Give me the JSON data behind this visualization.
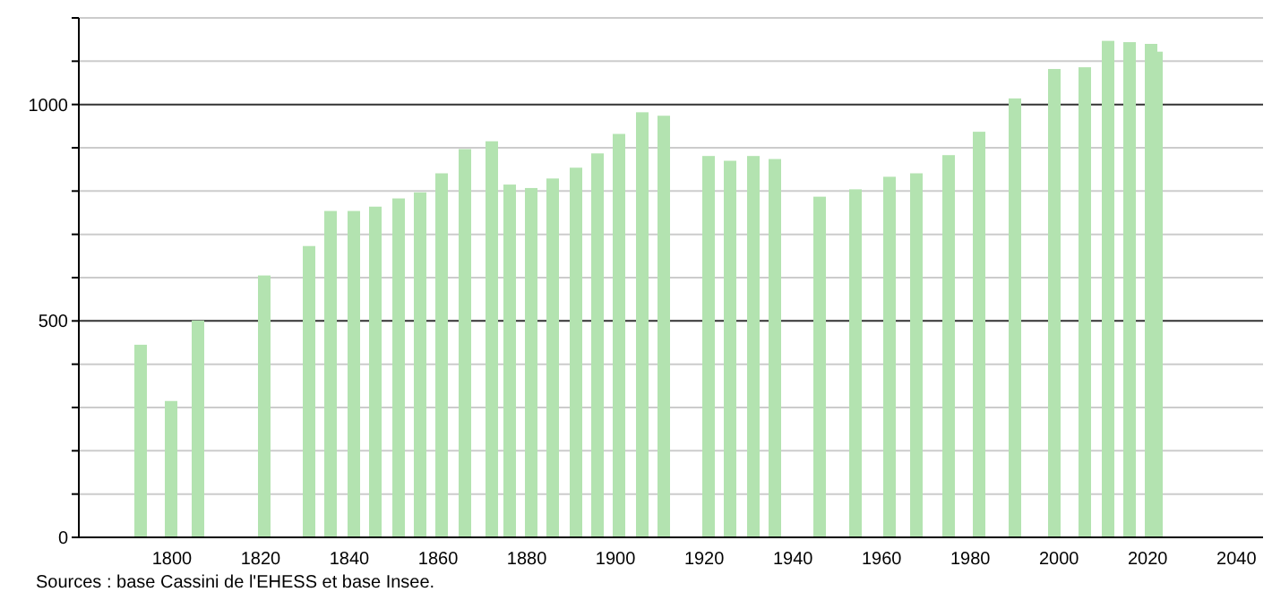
{
  "chart_data": {
    "type": "bar",
    "x": [
      1793,
      1800,
      1806,
      1821,
      1831,
      1836,
      1841,
      1846,
      1851,
      1856,
      1861,
      1866,
      1872,
      1876,
      1881,
      1886,
      1891,
      1896,
      1901,
      1906,
      1911,
      1921,
      1926,
      1931,
      1936,
      1946,
      1954,
      1962,
      1968,
      1975,
      1982,
      1990,
      1999,
      2006,
      2011,
      2016,
      2021,
      2022
    ],
    "values": [
      445,
      315,
      501,
      605,
      673,
      754,
      754,
      764,
      783,
      797,
      841,
      897,
      915,
      815,
      807,
      829,
      854,
      887,
      932,
      982,
      974,
      881,
      870,
      881,
      874,
      787,
      804,
      833,
      841,
      883,
      937,
      1014,
      1082,
      1086,
      1147,
      1144,
      1140,
      1122
    ],
    "color": "#b3e3b0",
    "xlim": [
      1779,
      2046
    ],
    "xticks": [
      1800,
      1820,
      1840,
      1860,
      1880,
      1900,
      1920,
      1940,
      1960,
      1980,
      2000,
      2020,
      2040
    ],
    "ylim": [
      0,
      1200
    ],
    "yticks": [
      0,
      {
        "value": 100,
        "label": null
      },
      {
        "value": 200,
        "label": null
      },
      {
        "value": 300,
        "label": null
      },
      {
        "value": 400,
        "label": null
      },
      500,
      {
        "value": 600,
        "label": null
      },
      {
        "value": 700,
        "label": null
      },
      {
        "value": 800,
        "label": null
      },
      {
        "value": 900,
        "label": null
      },
      1000,
      {
        "value": 1100,
        "label": null
      },
      {
        "value": 1200,
        "label": null
      }
    ],
    "grid": "y",
    "annotations": [
      "Sources : base Cassini de l'EHESS et base Insee."
    ]
  }
}
